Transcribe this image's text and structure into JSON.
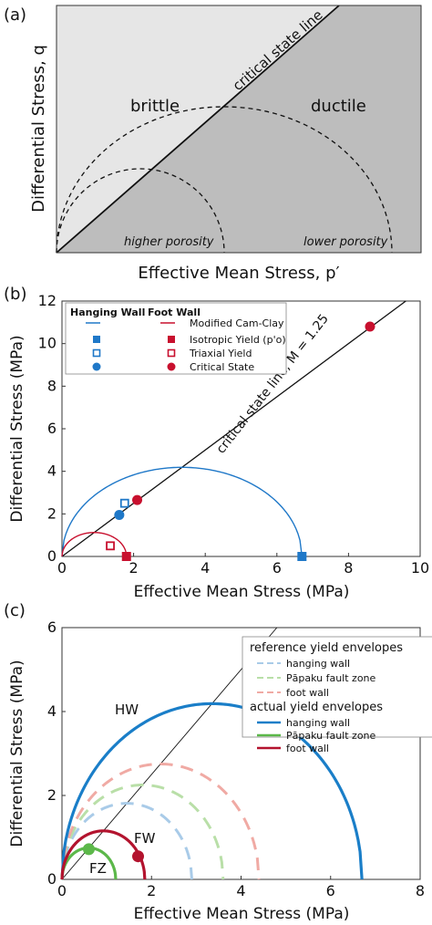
{
  "chart_data": [
    {
      "panel_label": "(a)",
      "type": "area",
      "xlabel": "Effective Mean Stress, p′",
      "ylabel": "Differential Stress, q",
      "regions": [
        "brittle",
        "ductile"
      ],
      "line_label": "critical state line",
      "annotations": [
        "higher porosity",
        "lower porosity"
      ],
      "colors": {
        "brittle": "#e6e6e6",
        "ductile": "#bdbdbd"
      }
    },
    {
      "panel_label": "(b)",
      "type": "scatter",
      "xlabel": "Effective Mean Stress (MPa)",
      "ylabel": "Differential Stress (MPa)",
      "xlim": [
        0,
        10
      ],
      "ylim": [
        0,
        12
      ],
      "xticks": [
        "0",
        "2",
        "4",
        "6",
        "8",
        "10"
      ],
      "yticks": [
        "0",
        "2",
        "4",
        "6",
        "8",
        "10",
        "12"
      ],
      "line_label": "critical state line, M = 1.25",
      "critical_state_slope": 1.25,
      "legend": {
        "hanging_wall": "Hanging Wall",
        "foot_wall": "Foot Wall",
        "model": "Modified Cam-Clay",
        "isotropic": "Isotropic Yield (p'o)",
        "triaxial": "Triaxial Yield",
        "critical": "Critical State"
      },
      "colors": {
        "hanging_wall": "#1f78c8",
        "foot_wall": "#c8102e"
      },
      "series": [
        {
          "name": "Hanging Wall",
          "p0": 6.7,
          "isotropic_yield": [
            6.7,
            0
          ],
          "triaxial_yield": [
            1.75,
            2.5
          ],
          "critical_state": [
            1.6,
            1.95
          ]
        },
        {
          "name": "Foot Wall",
          "p0": 1.8,
          "isotropic_yield": [
            1.8,
            0
          ],
          "triaxial_yield": [
            1.35,
            0.5
          ],
          "critical_state": [
            2.1,
            2.65
          ],
          "critical_state_extra": [
            8.6,
            10.8
          ]
        }
      ]
    },
    {
      "panel_label": "(c)",
      "type": "line",
      "xlabel": "Effective Mean Stress (MPa)",
      "ylabel": "Differential Stress (MPa)",
      "xlim": [
        0,
        8
      ],
      "ylim": [
        0,
        6
      ],
      "xticks": [
        "0",
        "2",
        "4",
        "6",
        "8"
      ],
      "yticks": [
        "0",
        "2",
        "4",
        "6"
      ],
      "critical_state_slope": 1.25,
      "legend_titles": {
        "reference": "reference yield envelopes",
        "actual": "actual yield envelopes"
      },
      "curve_labels": [
        "HW",
        "FW",
        "FZ"
      ],
      "reference": [
        {
          "name": "hanging wall",
          "p0": 2.9,
          "color": "#a9cbe8"
        },
        {
          "name": "Pāpaku fault zone",
          "p0": 3.6,
          "color": "#b9dfa8"
        },
        {
          "name": "foot wall",
          "p0": 4.4,
          "color": "#f0aaa4"
        }
      ],
      "actual": [
        {
          "name": "hanging wall",
          "p0": 6.7,
          "color": "#1a7ec8"
        },
        {
          "name": "Pāpaku fault zone",
          "p0": 1.2,
          "color": "#5cb84a"
        },
        {
          "name": "foot wall",
          "p0": 1.85,
          "color": "#b3132e"
        }
      ],
      "points": [
        {
          "label": "FW",
          "x": 1.7,
          "y": 0.55,
          "color": "#b3132e"
        },
        {
          "label": "FZ",
          "x": 0.6,
          "y": 0.72,
          "color": "#5cb84a"
        }
      ]
    }
  ]
}
